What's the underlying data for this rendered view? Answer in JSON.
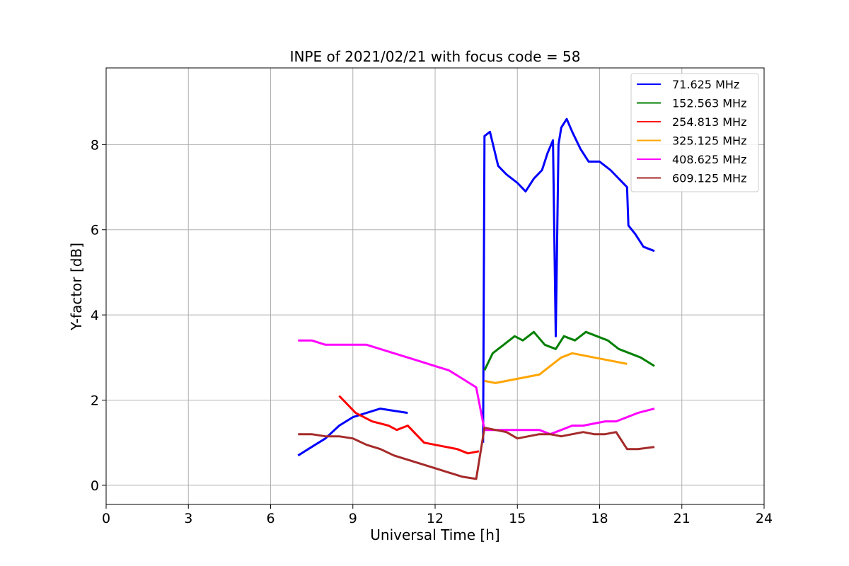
{
  "chart_data": {
    "type": "line",
    "title": "INPE of 2021/02/21 with focus code = 58",
    "xlabel": "Universal Time [h]",
    "ylabel": "Y-factor [dB]",
    "xlim": [
      0,
      24
    ],
    "ylim": [
      -0.45,
      9.8
    ],
    "xticks": [
      0,
      3,
      6,
      9,
      12,
      15,
      18,
      21,
      24
    ],
    "yticks": [
      0,
      2,
      4,
      6,
      8
    ],
    "grid": true,
    "legend_position": "top-right",
    "series": [
      {
        "name": " 71.625 MHz",
        "color": "#0000ff",
        "x": [
          7.0,
          7.5,
          8.0,
          8.5,
          9.0,
          9.5,
          10.0,
          10.5,
          11.0,
          13.7,
          13.75,
          13.8,
          14.0,
          14.3,
          14.6,
          15.0,
          15.3,
          15.6,
          15.9,
          16.1,
          16.3,
          16.4,
          16.5,
          16.6,
          16.8,
          17.0,
          17.3,
          17.6,
          18.0,
          18.4,
          18.7,
          19.0,
          19.05,
          19.3,
          19.6,
          20.0
        ],
        "y": [
          0.7,
          0.9,
          1.1,
          1.4,
          1.6,
          1.7,
          1.8,
          1.75,
          1.7,
          null,
          1.0,
          8.2,
          8.3,
          7.5,
          7.3,
          7.1,
          6.9,
          7.2,
          7.4,
          7.8,
          8.1,
          3.5,
          8.0,
          8.4,
          8.6,
          8.3,
          7.9,
          7.6,
          7.6,
          7.4,
          7.2,
          7.0,
          6.1,
          5.9,
          5.6,
          5.5
        ]
      },
      {
        "name": "152.563 MHz",
        "color": "#008000",
        "x": [
          13.8,
          14.1,
          14.5,
          14.9,
          15.2,
          15.6,
          16.0,
          16.4,
          16.7,
          17.1,
          17.5,
          17.9,
          18.3,
          18.7,
          19.1,
          19.5,
          20.0
        ],
        "y": [
          2.7,
          3.1,
          3.3,
          3.5,
          3.4,
          3.6,
          3.3,
          3.2,
          3.5,
          3.4,
          3.6,
          3.5,
          3.4,
          3.2,
          3.1,
          3.0,
          2.8
        ]
      },
      {
        "name": "254.813 MHz",
        "color": "#ff0000",
        "x": [
          8.5,
          8.8,
          9.1,
          9.4,
          9.7,
          10.0,
          10.3,
          10.6,
          11.0,
          11.3,
          11.6,
          12.0,
          12.4,
          12.8,
          13.2,
          13.6
        ],
        "y": [
          2.1,
          1.9,
          1.7,
          1.6,
          1.5,
          1.45,
          1.4,
          1.3,
          1.4,
          1.2,
          1.0,
          0.95,
          0.9,
          0.85,
          0.75,
          0.8
        ]
      },
      {
        "name": "325.125 MHz",
        "color": "#ffa500",
        "x": [
          13.8,
          14.2,
          14.6,
          15.0,
          15.4,
          15.8,
          16.2,
          16.6,
          17.0,
          17.4,
          17.8,
          18.2,
          18.6,
          19.0
        ],
        "y": [
          2.45,
          2.4,
          2.45,
          2.5,
          2.55,
          2.6,
          2.8,
          3.0,
          3.1,
          3.05,
          3.0,
          2.95,
          2.9,
          2.85
        ]
      },
      {
        "name": "408.625 MHz",
        "color": "#ff00ff",
        "x": [
          7.0,
          7.5,
          8.0,
          8.5,
          9.0,
          9.5,
          10.0,
          10.5,
          11.0,
          11.5,
          12.0,
          12.5,
          13.0,
          13.5,
          13.8,
          14.2,
          14.6,
          15.0,
          15.4,
          15.8,
          16.2,
          16.6,
          17.0,
          17.4,
          17.8,
          18.2,
          18.6,
          19.0,
          19.4,
          20.0
        ],
        "y": [
          3.4,
          3.4,
          3.3,
          3.3,
          3.3,
          3.3,
          3.2,
          3.1,
          3.0,
          2.9,
          2.8,
          2.7,
          2.5,
          2.3,
          1.3,
          1.3,
          1.3,
          1.3,
          1.3,
          1.3,
          1.2,
          1.3,
          1.4,
          1.4,
          1.45,
          1.5,
          1.5,
          1.6,
          1.7,
          1.8
        ]
      },
      {
        "name": "609.125 MHz",
        "color": "#a52a2a",
        "x": [
          7.0,
          7.5,
          8.0,
          8.5,
          9.0,
          9.5,
          10.0,
          10.5,
          11.0,
          11.5,
          12.0,
          12.5,
          13.0,
          13.5,
          13.8,
          14.2,
          14.6,
          15.0,
          15.4,
          15.8,
          16.2,
          16.6,
          17.0,
          17.4,
          17.8,
          18.2,
          18.6,
          19.0,
          19.4,
          20.0
        ],
        "y": [
          1.2,
          1.2,
          1.15,
          1.15,
          1.1,
          0.95,
          0.85,
          0.7,
          0.6,
          0.5,
          0.4,
          0.3,
          0.2,
          0.15,
          1.35,
          1.3,
          1.25,
          1.1,
          1.15,
          1.2,
          1.2,
          1.15,
          1.2,
          1.25,
          1.2,
          1.2,
          1.25,
          0.85,
          0.85,
          0.9
        ]
      }
    ]
  }
}
